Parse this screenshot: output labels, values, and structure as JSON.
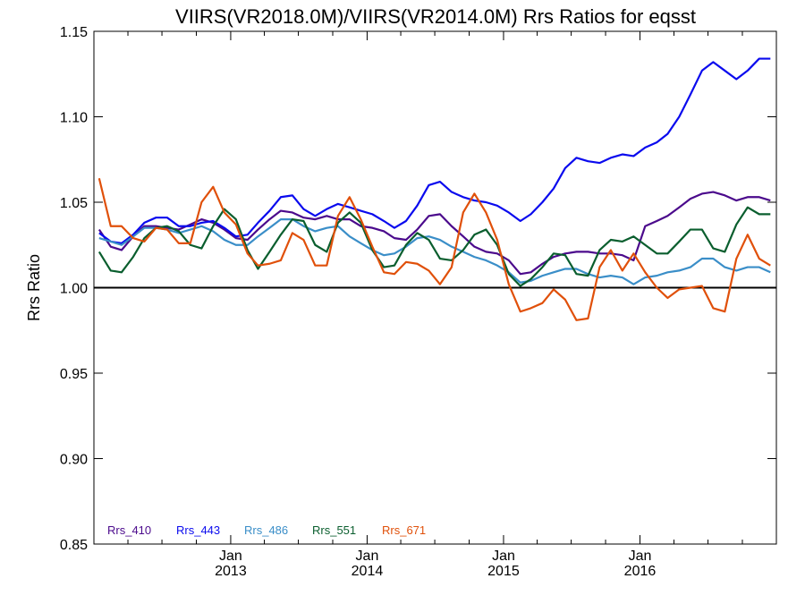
{
  "chart_data": {
    "type": "line",
    "title": "VIIRS(VR2018.0M)/VIIRS(VR2014.0M)  Rrs Ratios for eqsst",
    "xlabel": "",
    "ylabel": "Rrs Ratio",
    "ylim": [
      0.85,
      1.15
    ],
    "xlim": [
      "2012-01-01",
      "2016-12-31"
    ],
    "yticks": [
      "0.85",
      "0.90",
      "0.95",
      "1.00",
      "1.05",
      "1.10",
      "1.15"
    ],
    "xticks": [
      {
        "top": "Jan",
        "bottom": "2013",
        "date": "2013-01-01"
      },
      {
        "top": "Jan",
        "bottom": "2014",
        "date": "2014-01-01"
      },
      {
        "top": "Jan",
        "bottom": "2015",
        "date": "2015-01-01"
      },
      {
        "top": "Jan",
        "bottom": "2016",
        "date": "2016-01-01"
      }
    ],
    "reference_line": 1.0,
    "grid": false,
    "legend_position": "bottom-left",
    "months": [
      "2012-01",
      "2012-02",
      "2012-03",
      "2012-04",
      "2012-05",
      "2012-06",
      "2012-07",
      "2012-08",
      "2012-09",
      "2012-10",
      "2012-11",
      "2012-12",
      "2013-01",
      "2013-02",
      "2013-03",
      "2013-04",
      "2013-05",
      "2013-06",
      "2013-07",
      "2013-08",
      "2013-09",
      "2013-10",
      "2013-11",
      "2013-12",
      "2014-01",
      "2014-02",
      "2014-03",
      "2014-04",
      "2014-05",
      "2014-06",
      "2014-07",
      "2014-08",
      "2014-09",
      "2014-10",
      "2014-11",
      "2014-12",
      "2015-01",
      "2015-02",
      "2015-03",
      "2015-04",
      "2015-05",
      "2015-06",
      "2015-07",
      "2015-08",
      "2015-09",
      "2015-10",
      "2015-11",
      "2015-12",
      "2016-01",
      "2016-02",
      "2016-03",
      "2016-04",
      "2016-05",
      "2016-06",
      "2016-07",
      "2016-08",
      "2016-09",
      "2016-10",
      "2016-11",
      "2016-12"
    ],
    "series": [
      {
        "name": "Rrs_410",
        "color": "#4b0a8c",
        "values": [
          1.034,
          1.024,
          1.022,
          1.03,
          1.036,
          1.036,
          1.035,
          1.034,
          1.037,
          1.04,
          1.038,
          1.034,
          1.029,
          1.028,
          1.034,
          1.04,
          1.045,
          1.044,
          1.041,
          1.04,
          1.042,
          1.04,
          1.04,
          1.036,
          1.035,
          1.033,
          1.029,
          1.028,
          1.034,
          1.042,
          1.043,
          1.036,
          1.03,
          1.024,
          1.021,
          1.02,
          1.016,
          1.008,
          1.009,
          1.014,
          1.018,
          1.02,
          1.021,
          1.021,
          1.02,
          1.02,
          1.019,
          1.016,
          1.036,
          1.039,
          1.042,
          1.047,
          1.052,
          1.055,
          1.056,
          1.054,
          1.051,
          1.053,
          1.053,
          1.051
        ]
      },
      {
        "name": "Rrs_443",
        "color": "#0a0aee",
        "values": [
          1.032,
          1.027,
          1.026,
          1.031,
          1.038,
          1.041,
          1.041,
          1.036,
          1.036,
          1.038,
          1.039,
          1.035,
          1.03,
          1.031,
          1.038,
          1.045,
          1.053,
          1.054,
          1.046,
          1.042,
          1.046,
          1.049,
          1.047,
          1.045,
          1.043,
          1.039,
          1.035,
          1.039,
          1.048,
          1.06,
          1.062,
          1.056,
          1.053,
          1.051,
          1.05,
          1.048,
          1.044,
          1.039,
          1.043,
          1.05,
          1.058,
          1.07,
          1.076,
          1.074,
          1.073,
          1.076,
          1.078,
          1.077,
          1.082,
          1.085,
          1.09,
          1.1,
          1.113,
          1.127,
          1.132,
          1.127,
          1.122,
          1.127,
          1.134,
          1.134
        ]
      },
      {
        "name": "Rrs_486",
        "color": "#3a8ec8",
        "values": [
          1.029,
          1.027,
          1.025,
          1.03,
          1.035,
          1.035,
          1.034,
          1.032,
          1.034,
          1.036,
          1.033,
          1.028,
          1.025,
          1.025,
          1.03,
          1.035,
          1.04,
          1.04,
          1.036,
          1.033,
          1.035,
          1.036,
          1.03,
          1.026,
          1.022,
          1.019,
          1.02,
          1.024,
          1.029,
          1.03,
          1.028,
          1.024,
          1.021,
          1.018,
          1.016,
          1.013,
          1.009,
          1.003,
          1.004,
          1.007,
          1.009,
          1.011,
          1.011,
          1.008,
          1.006,
          1.007,
          1.006,
          1.002,
          1.006,
          1.007,
          1.009,
          1.01,
          1.012,
          1.017,
          1.017,
          1.012,
          1.01,
          1.012,
          1.012,
          1.009
        ]
      },
      {
        "name": "Rrs_551",
        "color": "#0a5e2e",
        "values": [
          1.021,
          1.01,
          1.009,
          1.018,
          1.029,
          1.035,
          1.036,
          1.033,
          1.025,
          1.023,
          1.036,
          1.046,
          1.04,
          1.022,
          1.011,
          1.021,
          1.031,
          1.04,
          1.039,
          1.025,
          1.021,
          1.038,
          1.044,
          1.038,
          1.022,
          1.012,
          1.013,
          1.025,
          1.032,
          1.028,
          1.017,
          1.016,
          1.022,
          1.031,
          1.034,
          1.025,
          1.008,
          1.001,
          1.005,
          1.012,
          1.02,
          1.019,
          1.008,
          1.007,
          1.022,
          1.028,
          1.027,
          1.03,
          1.025,
          1.02,
          1.02,
          1.027,
          1.034,
          1.034,
          1.023,
          1.021,
          1.037,
          1.047,
          1.043,
          1.043
        ]
      },
      {
        "name": "Rrs_671",
        "color": "#e0500a",
        "values": [
          1.064,
          1.036,
          1.036,
          1.029,
          1.027,
          1.035,
          1.034,
          1.026,
          1.026,
          1.05,
          1.059,
          1.044,
          1.037,
          1.02,
          1.013,
          1.014,
          1.016,
          1.032,
          1.028,
          1.013,
          1.013,
          1.042,
          1.053,
          1.04,
          1.024,
          1.009,
          1.008,
          1.015,
          1.014,
          1.01,
          1.002,
          1.012,
          1.044,
          1.055,
          1.044,
          1.028,
          1.002,
          0.986,
          0.988,
          0.991,
          0.999,
          0.993,
          0.981,
          0.982,
          1.012,
          1.022,
          1.01,
          1.02,
          1.009,
          1.0,
          0.994,
          0.999,
          1.0,
          1.001,
          0.988,
          0.986,
          1.017,
          1.031,
          1.017,
          1.013
        ]
      }
    ]
  }
}
